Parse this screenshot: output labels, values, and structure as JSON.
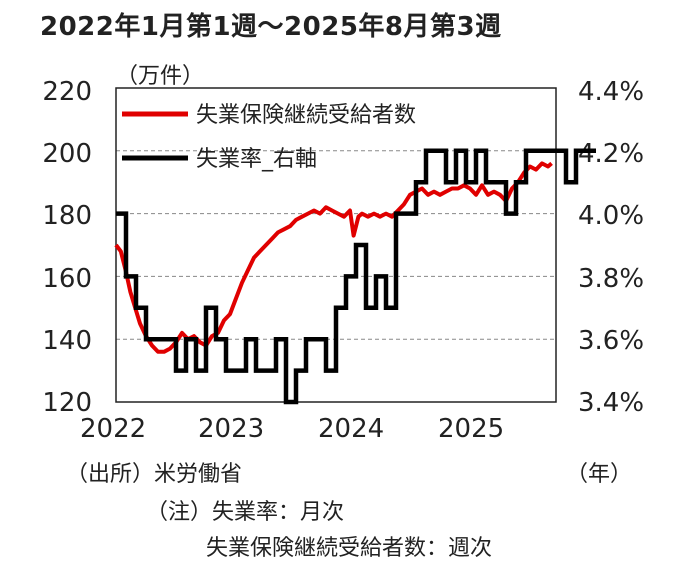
{
  "header": {
    "title": "2022年1月第1週～2025年8月第3週",
    "unit_left": "（万件）",
    "unit_right": "（年）"
  },
  "notes": {
    "source": "（出所）米労働省",
    "note1": "（注）失業率：月次",
    "note2": "失業保険継続受給者数：週次"
  },
  "chart_data": {
    "type": "line",
    "x_ticks": [
      "2022",
      "2023",
      "2024",
      "2025"
    ],
    "y_left": {
      "ticks": [
        "120",
        "140",
        "160",
        "180",
        "200",
        "220"
      ],
      "ylim": [
        120,
        220
      ]
    },
    "y_right": {
      "ticks": [
        "3.4%",
        "3.6%",
        "3.8%",
        "4.0%",
        "4.2%",
        "4.4%"
      ],
      "ylim": [
        3.4,
        4.4
      ]
    },
    "grid": "horizontal dashed",
    "legend": "top-left",
    "series": [
      {
        "name": "失業保険継続受給者数",
        "axis": "left",
        "color": "#e00000",
        "points": [
          [
            2022.0,
            170
          ],
          [
            2022.04,
            168
          ],
          [
            2022.08,
            162
          ],
          [
            2022.12,
            155
          ],
          [
            2022.16,
            150
          ],
          [
            2022.2,
            145
          ],
          [
            2022.25,
            141
          ],
          [
            2022.3,
            138
          ],
          [
            2022.35,
            136
          ],
          [
            2022.4,
            136
          ],
          [
            2022.45,
            137
          ],
          [
            2022.5,
            139
          ],
          [
            2022.55,
            142
          ],
          [
            2022.6,
            140
          ],
          [
            2022.65,
            141
          ],
          [
            2022.7,
            139
          ],
          [
            2022.75,
            138
          ],
          [
            2022.8,
            141
          ],
          [
            2022.85,
            142
          ],
          [
            2022.9,
            146
          ],
          [
            2022.95,
            148
          ],
          [
            2023.0,
            153
          ],
          [
            2023.05,
            158
          ],
          [
            2023.1,
            162
          ],
          [
            2023.15,
            166
          ],
          [
            2023.2,
            168
          ],
          [
            2023.25,
            170
          ],
          [
            2023.3,
            172
          ],
          [
            2023.35,
            174
          ],
          [
            2023.4,
            175
          ],
          [
            2023.45,
            176
          ],
          [
            2023.5,
            178
          ],
          [
            2023.55,
            179
          ],
          [
            2023.6,
            180
          ],
          [
            2023.65,
            181
          ],
          [
            2023.7,
            180
          ],
          [
            2023.75,
            182
          ],
          [
            2023.8,
            181
          ],
          [
            2023.85,
            180
          ],
          [
            2023.9,
            179
          ],
          [
            2023.95,
            181
          ],
          [
            2023.98,
            173
          ],
          [
            2024.02,
            179
          ],
          [
            2024.05,
            180
          ],
          [
            2024.1,
            179
          ],
          [
            2024.15,
            180
          ],
          [
            2024.2,
            179
          ],
          [
            2024.25,
            180
          ],
          [
            2024.3,
            179
          ],
          [
            2024.35,
            181
          ],
          [
            2024.4,
            183
          ],
          [
            2024.45,
            186
          ],
          [
            2024.5,
            187
          ],
          [
            2024.55,
            188
          ],
          [
            2024.6,
            186
          ],
          [
            2024.65,
            187
          ],
          [
            2024.7,
            186
          ],
          [
            2024.75,
            187
          ],
          [
            2024.8,
            188
          ],
          [
            2024.85,
            188
          ],
          [
            2024.9,
            189
          ],
          [
            2024.95,
            188
          ],
          [
            2025.0,
            186
          ],
          [
            2025.05,
            189
          ],
          [
            2025.1,
            186
          ],
          [
            2025.15,
            187
          ],
          [
            2025.2,
            186
          ],
          [
            2025.25,
            184
          ],
          [
            2025.3,
            188
          ],
          [
            2025.35,
            190
          ],
          [
            2025.4,
            193
          ],
          [
            2025.45,
            195
          ],
          [
            2025.5,
            194
          ],
          [
            2025.55,
            196
          ],
          [
            2025.6,
            195
          ],
          [
            2025.63,
            196
          ]
        ]
      },
      {
        "name": "失業率_右軸",
        "axis": "right",
        "color": "#000000",
        "steps": [
          4.0,
          3.8,
          3.7,
          3.6,
          3.6,
          3.6,
          3.5,
          3.6,
          3.5,
          3.7,
          3.6,
          3.5,
          3.5,
          3.6,
          3.5,
          3.5,
          3.6,
          3.4,
          3.5,
          3.6,
          3.6,
          3.5,
          3.7,
          3.8,
          3.9,
          3.7,
          3.8,
          3.7,
          4.0,
          4.0,
          4.1,
          4.2,
          4.2,
          4.1,
          4.2,
          4.1,
          4.2,
          4.1,
          4.1,
          4.0,
          4.1,
          4.2,
          4.2,
          4.2,
          4.2,
          4.1,
          4.2,
          4.2
        ]
      }
    ]
  }
}
